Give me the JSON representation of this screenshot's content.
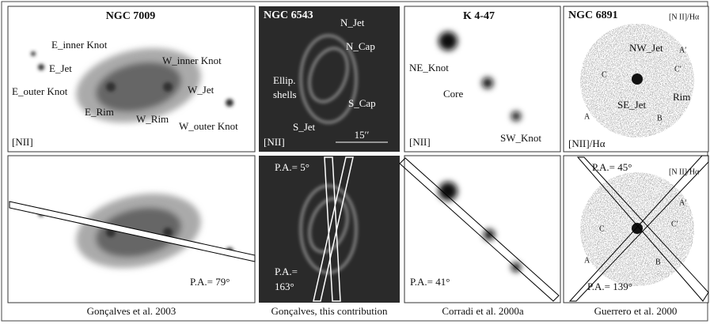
{
  "panels": [
    {
      "title": "NGC 7009",
      "labels": [
        "E_inner Knot",
        "W_inner Knot",
        "E_Jet",
        "W_Jet",
        "E_outer Knot",
        "E_Rim",
        "W_Rim",
        "W_outer Knot"
      ],
      "filter": "[NII]",
      "slit_labels": [
        "P.A.= 79°"
      ],
      "caption": "Gonçalves et al. 2003"
    },
    {
      "title": "NGC 6543",
      "labels": [
        "N_Jet",
        "N_Cap",
        "Ellip.",
        "shells",
        "S_Cap",
        "S_Jet"
      ],
      "filter": "[NII]",
      "scale": "15′′",
      "slit_labels": [
        "P.A.= 5°",
        "P.A.=",
        "163°"
      ],
      "caption": "Gonçalves, this contribution"
    },
    {
      "title": "K 4-47",
      "labels": [
        "NE_Knot",
        "Core",
        "SW_Knot"
      ],
      "filter": "[NII]",
      "slit_labels": [
        "P.A.= 41°"
      ],
      "caption": "Corradi et al. 2000a"
    },
    {
      "title": "NGC 6891",
      "labels": [
        "[N II]/Hα",
        "NW_Jet",
        "A′",
        "C′",
        "C",
        "SE_Jet",
        "Rim",
        "A",
        "B"
      ],
      "filter": "[NII]/Hα",
      "bottom_labels": [
        "[N II]/Hα",
        "A′",
        "C′",
        "C",
        "A",
        "B"
      ],
      "slit_labels": [
        "P.A.= 45°",
        "P.A.= 139°"
      ],
      "caption": "Guerrero et al. 2000"
    }
  ]
}
